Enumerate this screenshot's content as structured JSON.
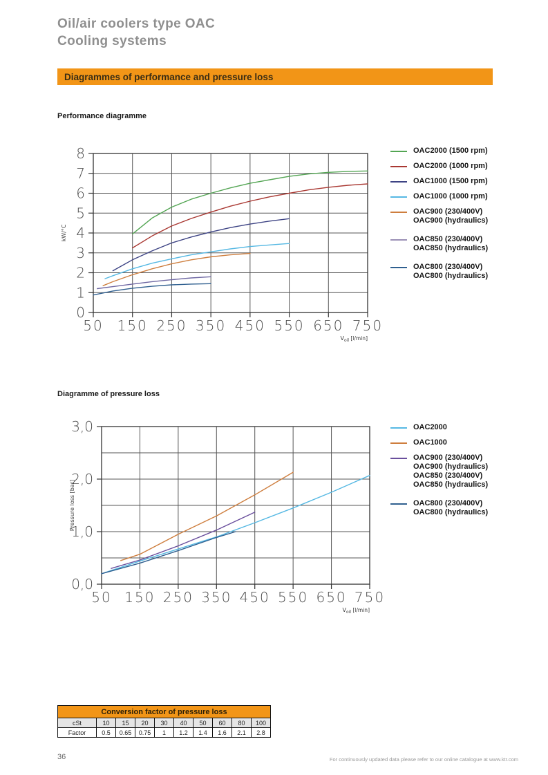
{
  "page": {
    "title_line1": "Oil/air coolers type OAC",
    "title_line2": "Cooling systems",
    "banner_title": "Diagrammes of performance and pressure loss",
    "page_number": "36",
    "footer_note": "For continuously updated data please refer to our online catalogue at www.ktr.com"
  },
  "section_labels": {
    "performance": "Performance diagramme",
    "pressure_loss": "Diagramme of pressure loss"
  },
  "colors": {
    "banner_orange": "#F29517",
    "title_gray": "#8F8F8F",
    "grid": "#555555",
    "frame": "#333333"
  },
  "chart_data": [
    {
      "id": "performance",
      "type": "line",
      "title": "Performance diagramme",
      "xlabel": {
        "base": "V",
        "sub": "oil",
        "unit": "[l/min]"
      },
      "ylabel": "kW/°C",
      "xlim": [
        50,
        750
      ],
      "ylim": [
        0,
        8
      ],
      "xticks": [
        50,
        150,
        250,
        350,
        450,
        550,
        650,
        750
      ],
      "yticks": [
        {
          "v": 0,
          "label": "0"
        },
        {
          "v": 1,
          "label": "1"
        },
        {
          "v": 2,
          "label": "2"
        },
        {
          "v": 3,
          "label": "3"
        },
        {
          "v": 4,
          "label": "4"
        },
        {
          "v": 5,
          "label": "5"
        },
        {
          "v": 6,
          "label": "6"
        },
        {
          "v": 7,
          "label": "7"
        },
        {
          "v": 8,
          "label": "8"
        }
      ],
      "ygrid_step": 1,
      "grid": true,
      "legend_position": "right",
      "series": [
        {
          "name": "OAC2000 (1500 rpm)",
          "color": "#53A553",
          "x": [
            150,
            200,
            250,
            300,
            350,
            400,
            450,
            500,
            550,
            600,
            650,
            700,
            750
          ],
          "y": [
            3.95,
            4.75,
            5.3,
            5.7,
            6.0,
            6.27,
            6.5,
            6.68,
            6.85,
            6.97,
            7.05,
            7.1,
            7.12
          ]
        },
        {
          "name": "OAC2000 (1000 rpm)",
          "color": "#A93832",
          "x": [
            150,
            200,
            250,
            300,
            350,
            400,
            450,
            500,
            550,
            600,
            650,
            700,
            750
          ],
          "y": [
            3.25,
            3.85,
            4.35,
            4.73,
            5.05,
            5.35,
            5.6,
            5.82,
            6.0,
            6.17,
            6.3,
            6.4,
            6.47
          ]
        },
        {
          "name": "OAC1000 (1500 rpm)",
          "color": "#3D4384",
          "x": [
            100,
            150,
            200,
            250,
            300,
            350,
            400,
            450,
            500,
            550
          ],
          "y": [
            2.1,
            2.65,
            3.1,
            3.5,
            3.8,
            4.05,
            4.27,
            4.45,
            4.6,
            4.72
          ]
        },
        {
          "name": "OAC1000 (1000 rpm)",
          "color": "#55B8E3",
          "x": [
            80,
            100,
            150,
            200,
            250,
            300,
            350,
            400,
            450,
            500,
            550
          ],
          "y": [
            1.7,
            1.85,
            2.2,
            2.48,
            2.7,
            2.9,
            3.05,
            3.2,
            3.32,
            3.4,
            3.47
          ]
        },
        {
          "name": "OAC900 (230/400V) / OAC900 (hydraulics)",
          "color": "#CE7E3E",
          "x": [
            75,
            100,
            150,
            200,
            250,
            300,
            350,
            400,
            450
          ],
          "y": [
            1.35,
            1.55,
            1.9,
            2.2,
            2.45,
            2.65,
            2.8,
            2.9,
            2.97
          ]
        },
        {
          "name": "OAC850 (230/400V) / OAC850 (hydraulics)",
          "color": "#6F68A3",
          "x": [
            60,
            100,
            150,
            200,
            250,
            300,
            350
          ],
          "y": [
            1.2,
            1.3,
            1.43,
            1.55,
            1.65,
            1.74,
            1.8
          ]
        },
        {
          "name": "OAC800 (230/400V) / OAC800 (hydraulics)",
          "color": "#2F5F8F",
          "x": [
            50,
            100,
            150,
            200,
            250,
            300,
            350
          ],
          "y": [
            0.88,
            1.08,
            1.22,
            1.32,
            1.39,
            1.43,
            1.45
          ]
        }
      ],
      "legend": [
        {
          "color": "#53A553",
          "lines": [
            "OAC2000 (1500 rpm)"
          ]
        },
        {
          "color": "#A93832",
          "lines": [
            "OAC2000 (1000 rpm)"
          ]
        },
        {
          "color": "#3D4384",
          "lines": [
            "OAC1000 (1500 rpm)"
          ]
        },
        {
          "color": "#55B8E3",
          "lines": [
            "OAC1000 (1000 rpm)"
          ]
        },
        {
          "color": "#CE7E3E",
          "lines": [
            "OAC900 (230/400V)",
            "OAC900 (hydraulics)"
          ]
        },
        {
          "color": "#9A90B5",
          "lines": [
            "OAC850 (230/400V)",
            "OAC850 (hydraulics)"
          ]
        },
        {
          "color": "#2F5F8F",
          "lines": [
            "OAC800 (230/400V)",
            "OAC800 (hydraulics)"
          ]
        }
      ]
    },
    {
      "id": "pressure-loss",
      "type": "line",
      "title": "Diagramme of pressure loss",
      "xlabel": {
        "base": "V",
        "sub": "oil",
        "unit": "[l/min]"
      },
      "ylabel": "Pressure loss [bar]",
      "xlim": [
        50,
        750
      ],
      "ylim": [
        0,
        3
      ],
      "xticks": [
        50,
        150,
        250,
        350,
        450,
        550,
        650,
        750
      ],
      "yticks": [
        {
          "v": 0,
          "label": "0,0"
        },
        {
          "v": 1,
          "label": "1,0"
        },
        {
          "v": 2,
          "label": "2,0"
        },
        {
          "v": 3,
          "label": "3,0"
        }
      ],
      "ygrid_step": 0.5,
      "grid": true,
      "legend_position": "right",
      "series": [
        {
          "name": "OAC2000",
          "color": "#55B8E3",
          "x": [
            50,
            150,
            250,
            350,
            450,
            550,
            650,
            750
          ],
          "y": [
            0.2,
            0.44,
            0.67,
            0.9,
            1.17,
            1.45,
            1.75,
            2.07
          ]
        },
        {
          "name": "OAC1000",
          "color": "#CE7E3E",
          "x": [
            100,
            150,
            250,
            350,
            450,
            550
          ],
          "y": [
            0.45,
            0.57,
            0.95,
            1.3,
            1.7,
            2.13
          ]
        },
        {
          "name": "OAC900/OAC850 (230/400V + hydraulics)",
          "color": "#6A4F9D",
          "x": [
            75,
            150,
            250,
            350,
            450
          ],
          "y": [
            0.3,
            0.46,
            0.73,
            1.03,
            1.37
          ]
        },
        {
          "name": "OAC800 (230/400V + hydraulics)",
          "color": "#2F5F8F",
          "x": [
            50,
            150,
            250,
            350,
            400
          ],
          "y": [
            0.2,
            0.4,
            0.64,
            0.89,
            1.0
          ]
        }
      ],
      "legend": [
        {
          "color": "#55B8E3",
          "lines": [
            "OAC2000"
          ]
        },
        {
          "color": "#CE7E3E",
          "lines": [
            "OAC1000"
          ]
        },
        {
          "color": "#6A4F9D",
          "lines": [
            "OAC900 (230/400V)",
            "OAC900 (hydraulics)",
            "OAC850 (230/400V)",
            "OAC850 (hydraulics)"
          ]
        },
        {
          "color": "#2F5F8F",
          "lines": [
            "OAC800 (230/400V)",
            "OAC800 (hydraulics)"
          ]
        }
      ]
    }
  ],
  "table": {
    "title": "Conversion factor of pressure loss",
    "rows": [
      {
        "label": "cSt",
        "values": [
          "10",
          "15",
          "20",
          "30",
          "40",
          "50",
          "60",
          "80",
          "100"
        ]
      },
      {
        "label": "Factor",
        "values": [
          "0.5",
          "0.65",
          "0.75",
          "1",
          "1.2",
          "1.4",
          "1.6",
          "2.1",
          "2.8"
        ]
      }
    ]
  }
}
